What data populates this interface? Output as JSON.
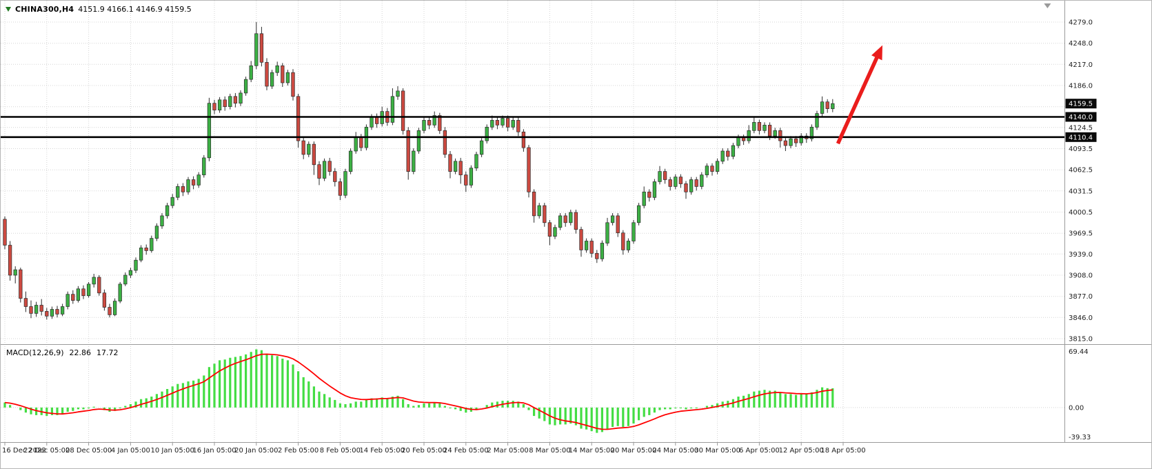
{
  "header": {
    "symbol": "CHINA300,H4",
    "ohlc": "4151.9 4166.1 4146.9 4159.5"
  },
  "macd_label": {
    "name": "MACD(12,26,9)",
    "main": "22.86",
    "signal": "17.72"
  },
  "colors": {
    "up": "#3cb044",
    "down": "#cd4a41",
    "candle_outline": "#2b2b2b",
    "grid": "#d4d4d4",
    "macd_hist": "#44dd44",
    "macd_signal": "#ff0000",
    "level_line": "#000000",
    "arrow": "#ea1d1c",
    "badge_bg": "#0a0a0a",
    "badge_fg": "#ffffff",
    "axis_text": "#1c1c1c",
    "separator": "#9a9a9a",
    "shift_marker": "#9a9a9a"
  },
  "chart_data": [
    {
      "type": "candlestick",
      "symbol": "CHINA300",
      "timeframe": "H4",
      "current_ohlc": {
        "open": 4151.9,
        "high": 4166.1,
        "low": 4146.9,
        "close": 4159.5
      },
      "ylim": [
        3808,
        4310
      ],
      "candles_per_x_tick": 8,
      "x_tick_labels": [
        "16 Dec 2022",
        "22 Dec 05:00",
        "28 Dec 05:00",
        "4 Jan 05:00",
        "10 Jan 05:00",
        "16 Jan 05:00",
        "20 Jan 05:00",
        "2 Feb 05:00",
        "8 Feb 05:00",
        "14 Feb 05:00",
        "20 Feb 05:00",
        "24 Feb 05:00",
        "2 Mar 05:00",
        "8 Mar 05:00",
        "14 Mar 05:00",
        "20 Mar 05:00",
        "24 Mar 05:00",
        "30 Mar 05:00",
        "6 Apr 05:00",
        "12 Apr 05:00",
        "18 Apr 05:00"
      ],
      "y_tick_labels": [
        {
          "text": "4279.0",
          "value": 4279.0
        },
        {
          "text": "4248.0",
          "value": 4248.0
        },
        {
          "text": "4217.0",
          "value": 4217.0
        },
        {
          "text": "4186.0",
          "value": 4186.0
        },
        {
          "text": "4124.5",
          "value": 4124.5
        },
        {
          "text": "4093.5",
          "value": 4093.5
        },
        {
          "text": "4062.5",
          "value": 4062.5
        },
        {
          "text": "4031.5",
          "value": 4031.5
        },
        {
          "text": "4000.5",
          "value": 4000.5
        },
        {
          "text": "3969.5",
          "value": 3969.5
        },
        {
          "text": "3939.0",
          "value": 3939.0
        },
        {
          "text": "3908.0",
          "value": 3908.0
        },
        {
          "text": "3877.0",
          "value": 3877.0
        },
        {
          "text": "3846.0",
          "value": 3846.0
        },
        {
          "text": "3815.0",
          "value": 3815.0
        }
      ],
      "y_gridline_values": [
        4279.0,
        4248.0,
        4217.0,
        4186.0,
        4155.0,
        4124.5,
        4093.5,
        4062.5,
        4031.5,
        4000.5,
        3969.5,
        3939.0,
        3908.0,
        3877.0,
        3846.0,
        3815.0
      ],
      "price_badges": [
        {
          "text": "4159.5",
          "value": 4159.5,
          "kind": "current-price"
        },
        {
          "text": "4140.0",
          "value": 4140.0,
          "kind": "level"
        },
        {
          "text": "4110.4",
          "value": 4110.4,
          "kind": "level"
        }
      ],
      "support_resistance_lines": [
        4140.0,
        4110.4
      ],
      "arrow_annotation": {
        "from": {
          "bar": 159,
          "price": 4101
        },
        "to": {
          "bar": 167.5,
          "price": 4245
        }
      },
      "chart_shift_marker_bar": 199,
      "candles": [
        [
          3990,
          3994,
          3946,
          3952
        ],
        [
          3952,
          3958,
          3900,
          3908
        ],
        [
          3908,
          3921,
          3896,
          3916
        ],
        [
          3916,
          3919,
          3868,
          3874
        ],
        [
          3874,
          3884,
          3854,
          3862
        ],
        [
          3862,
          3871,
          3845,
          3852
        ],
        [
          3852,
          3869,
          3847,
          3864
        ],
        [
          3864,
          3873,
          3849,
          3855
        ],
        [
          3855,
          3860,
          3843,
          3848
        ],
        [
          3848,
          3862,
          3844,
          3858
        ],
        [
          3858,
          3863,
          3846,
          3851
        ],
        [
          3851,
          3866,
          3848,
          3862
        ],
        [
          3862,
          3884,
          3858,
          3880
        ],
        [
          3880,
          3886,
          3866,
          3871
        ],
        [
          3871,
          3892,
          3868,
          3888
        ],
        [
          3888,
          3893,
          3873,
          3878
        ],
        [
          3878,
          3898,
          3875,
          3895
        ],
        [
          3895,
          3910,
          3890,
          3905
        ],
        [
          3905,
          3908,
          3878,
          3882
        ],
        [
          3882,
          3887,
          3856,
          3861
        ],
        [
          3861,
          3866,
          3846,
          3850
        ],
        [
          3850,
          3874,
          3848,
          3870
        ],
        [
          3870,
          3898,
          3867,
          3895
        ],
        [
          3895,
          3912,
          3892,
          3908
        ],
        [
          3908,
          3919,
          3904,
          3915
        ],
        [
          3915,
          3934,
          3911,
          3930
        ],
        [
          3930,
          3952,
          3927,
          3948
        ],
        [
          3948,
          3953,
          3938,
          3944
        ],
        [
          3944,
          3966,
          3941,
          3962
        ],
        [
          3962,
          3984,
          3958,
          3980
        ],
        [
          3980,
          3999,
          3976,
          3995
        ],
        [
          3995,
          4014,
          3991,
          4010
        ],
        [
          4010,
          4027,
          4006,
          4022
        ],
        [
          4022,
          4042,
          4018,
          4038
        ],
        [
          4038,
          4043,
          4024,
          4030
        ],
        [
          4030,
          4052,
          4026,
          4048
        ],
        [
          4048,
          4053,
          4034,
          4040
        ],
        [
          4040,
          4059,
          4036,
          4055
        ],
        [
          4055,
          4084,
          4051,
          4080
        ],
        [
          4080,
          4168,
          4075,
          4160
        ],
        [
          4160,
          4165,
          4144,
          4150
        ],
        [
          4150,
          4169,
          4146,
          4165
        ],
        [
          4165,
          4170,
          4149,
          4155
        ],
        [
          4155,
          4174,
          4151,
          4170
        ],
        [
          4170,
          4175,
          4154,
          4160
        ],
        [
          4160,
          4179,
          4156,
          4175
        ],
        [
          4175,
          4199,
          4171,
          4195
        ],
        [
          4195,
          4222,
          4191,
          4215
        ],
        [
          4215,
          4279,
          4210,
          4262
        ],
        [
          4262,
          4272,
          4214,
          4220
        ],
        [
          4220,
          4226,
          4179,
          4185
        ],
        [
          4185,
          4209,
          4181,
          4205
        ],
        [
          4205,
          4221,
          4200,
          4215
        ],
        [
          4215,
          4219,
          4184,
          4190
        ],
        [
          4190,
          4209,
          4186,
          4205
        ],
        [
          4205,
          4210,
          4164,
          4170
        ],
        [
          4170,
          4174,
          4095,
          4105
        ],
        [
          4105,
          4110,
          4078,
          4085
        ],
        [
          4085,
          4104,
          4081,
          4100
        ],
        [
          4100,
          4104,
          4055,
          4070
        ],
        [
          4070,
          4075,
          4040,
          4050
        ],
        [
          4050,
          4079,
          4046,
          4075
        ],
        [
          4075,
          4080,
          4054,
          4060
        ],
        [
          4060,
          4065,
          4038,
          4045
        ],
        [
          4045,
          4050,
          4018,
          4025
        ],
        [
          4025,
          4064,
          4021,
          4060
        ],
        [
          4060,
          4094,
          4056,
          4090
        ],
        [
          4090,
          4118,
          4086,
          4110
        ],
        [
          4110,
          4115,
          4090,
          4095
        ],
        [
          4095,
          4129,
          4091,
          4125
        ],
        [
          4125,
          4144,
          4121,
          4140
        ],
        [
          4140,
          4145,
          4124,
          4130
        ],
        [
          4130,
          4155,
          4126,
          4148
        ],
        [
          4148,
          4153,
          4127,
          4132
        ],
        [
          4132,
          4182,
          4128,
          4170
        ],
        [
          4170,
          4185,
          4165,
          4178
        ],
        [
          4178,
          4182,
          4114,
          4120
        ],
        [
          4120,
          4125,
          4048,
          4060
        ],
        [
          4060,
          4094,
          4056,
          4090
        ],
        [
          4090,
          4124,
          4086,
          4120
        ],
        [
          4120,
          4139,
          4116,
          4135
        ],
        [
          4135,
          4140,
          4122,
          4128
        ],
        [
          4128,
          4148,
          4124,
          4142
        ],
        [
          4142,
          4146,
          4115,
          4120
        ],
        [
          4120,
          4125,
          4080,
          4085
        ],
        [
          4085,
          4090,
          4050,
          4060
        ],
        [
          4060,
          4079,
          4056,
          4075
        ],
        [
          4075,
          4080,
          4042,
          4055
        ],
        [
          4055,
          4060,
          4030,
          4040
        ],
        [
          4040,
          4069,
          4036,
          4065
        ],
        [
          4065,
          4089,
          4061,
          4085
        ],
        [
          4085,
          4109,
          4081,
          4105
        ],
        [
          4105,
          4129,
          4101,
          4125
        ],
        [
          4125,
          4142,
          4121,
          4135
        ],
        [
          4135,
          4140,
          4122,
          4128
        ],
        [
          4128,
          4142,
          4124,
          4138
        ],
        [
          4138,
          4142,
          4119,
          4125
        ],
        [
          4125,
          4139,
          4121,
          4135
        ],
        [
          4135,
          4139,
          4112,
          4118
        ],
        [
          4118,
          4122,
          4089,
          4095
        ],
        [
          4095,
          4099,
          4022,
          4030
        ],
        [
          4030,
          4034,
          3985,
          3995
        ],
        [
          3995,
          4014,
          3991,
          4010
        ],
        [
          4010,
          4014,
          3979,
          3985
        ],
        [
          3985,
          3989,
          3952,
          3965
        ],
        [
          3965,
          3982,
          3961,
          3978
        ],
        [
          3978,
          3999,
          3974,
          3995
        ],
        [
          3995,
          3999,
          3979,
          3985
        ],
        [
          3985,
          4004,
          3981,
          4000
        ],
        [
          4000,
          4004,
          3969,
          3975
        ],
        [
          3975,
          3979,
          3935,
          3945
        ],
        [
          3945,
          3962,
          3941,
          3958
        ],
        [
          3958,
          3962,
          3934,
          3940
        ],
        [
          3940,
          3945,
          3926,
          3932
        ],
        [
          3932,
          3959,
          3928,
          3955
        ],
        [
          3955,
          3992,
          3951,
          3985
        ],
        [
          3985,
          3999,
          3981,
          3995
        ],
        [
          3995,
          3999,
          3964,
          3970
        ],
        [
          3970,
          3974,
          3938,
          3945
        ],
        [
          3945,
          3962,
          3941,
          3958
        ],
        [
          3958,
          3989,
          3954,
          3985
        ],
        [
          3985,
          4014,
          3981,
          4010
        ],
        [
          4010,
          4038,
          4006,
          4030
        ],
        [
          4030,
          4034,
          4016,
          4022
        ],
        [
          4022,
          4049,
          4018,
          4045
        ],
        [
          4045,
          4068,
          4041,
          4060
        ],
        [
          4060,
          4064,
          4042,
          4048
        ],
        [
          4048,
          4052,
          4032,
          4038
        ],
        [
          4038,
          4056,
          4034,
          4052
        ],
        [
          4052,
          4056,
          4036,
          4042
        ],
        [
          4042,
          4046,
          4020,
          4030
        ],
        [
          4030,
          4052,
          4026,
          4048
        ],
        [
          4048,
          4052,
          4032,
          4038
        ],
        [
          4038,
          4059,
          4034,
          4055
        ],
        [
          4055,
          4072,
          4051,
          4068
        ],
        [
          4068,
          4072,
          4054,
          4060
        ],
        [
          4060,
          4079,
          4056,
          4075
        ],
        [
          4075,
          4094,
          4071,
          4090
        ],
        [
          4090,
          4094,
          4076,
          4082
        ],
        [
          4082,
          4102,
          4078,
          4098
        ],
        [
          4098,
          4114,
          4094,
          4110
        ],
        [
          4110,
          4114,
          4099,
          4105
        ],
        [
          4105,
          4128,
          4101,
          4120
        ],
        [
          4120,
          4140,
          4116,
          4132
        ],
        [
          4132,
          4136,
          4114,
          4120
        ],
        [
          4120,
          4132,
          4116,
          4128
        ],
        [
          4128,
          4132,
          4106,
          4112
        ],
        [
          4112,
          4124,
          4108,
          4120
        ],
        [
          4120,
          4124,
          4095,
          4105
        ],
        [
          4105,
          4109,
          4090,
          4098
        ],
        [
          4098,
          4112,
          4094,
          4108
        ],
        [
          4108,
          4112,
          4096,
          4102
        ],
        [
          4102,
          4116,
          4098,
          4112
        ],
        [
          4112,
          4116,
          4102,
          4108
        ],
        [
          4108,
          4129,
          4104,
          4125
        ],
        [
          4125,
          4149,
          4121,
          4145
        ],
        [
          4145,
          4170,
          4141,
          4162
        ],
        [
          4162,
          4166,
          4146,
          4152
        ],
        [
          4151.9,
          4166.1,
          4146.9,
          4159.5
        ]
      ]
    },
    {
      "type": "bar",
      "name": "MACD(12,26,9)",
      "current_values": {
        "macd": 22.86,
        "signal": 17.72
      },
      "ylim": [
        -39.33,
        69.44
      ],
      "signal_period": 9,
      "y_tick_labels": [
        {
          "text": "69.44",
          "value": 69.44
        },
        {
          "text": "0.00",
          "value": 0.0
        },
        {
          "text": "-39.33",
          "value": -39.33
        }
      ],
      "histogram": [
        6,
        3,
        0,
        -3,
        -6,
        -8,
        -9,
        -9,
        -10,
        -9,
        -9,
        -8,
        -5,
        -4,
        -2,
        -2,
        -1,
        1,
        0,
        -3,
        -5,
        -4,
        -1,
        2,
        4,
        7,
        10,
        11,
        13,
        16,
        19,
        22,
        25,
        28,
        29,
        31,
        32,
        34,
        38,
        48,
        52,
        56,
        57,
        59,
        60,
        61,
        63,
        66,
        69,
        68,
        64,
        62,
        61,
        58,
        56,
        51,
        43,
        36,
        31,
        25,
        19,
        16,
        12,
        9,
        5,
        4,
        5,
        7,
        7,
        9,
        11,
        11,
        12,
        11,
        13,
        14,
        10,
        4,
        2,
        3,
        5,
        5,
        6,
        5,
        2,
        -1,
        -2,
        -4,
        -6,
        -5,
        -3,
        0,
        3,
        6,
        7,
        8,
        8,
        8,
        7,
        4,
        -3,
        -10,
        -13,
        -16,
        -20,
        -21,
        -20,
        -20,
        -19,
        -21,
        -25,
        -26,
        -28,
        -30,
        -29,
        -26,
        -23,
        -22,
        -23,
        -22,
        -19,
        -15,
        -11,
        -9,
        -6,
        -3,
        -2,
        -2,
        -1,
        -1,
        -2,
        -1,
        -1,
        0,
        2,
        3,
        5,
        7,
        8,
        10,
        13,
        14,
        16,
        19,
        20,
        21,
        20,
        20,
        18,
        16,
        16,
        15,
        16,
        16,
        18,
        21,
        24,
        23,
        22.86
      ]
    }
  ]
}
